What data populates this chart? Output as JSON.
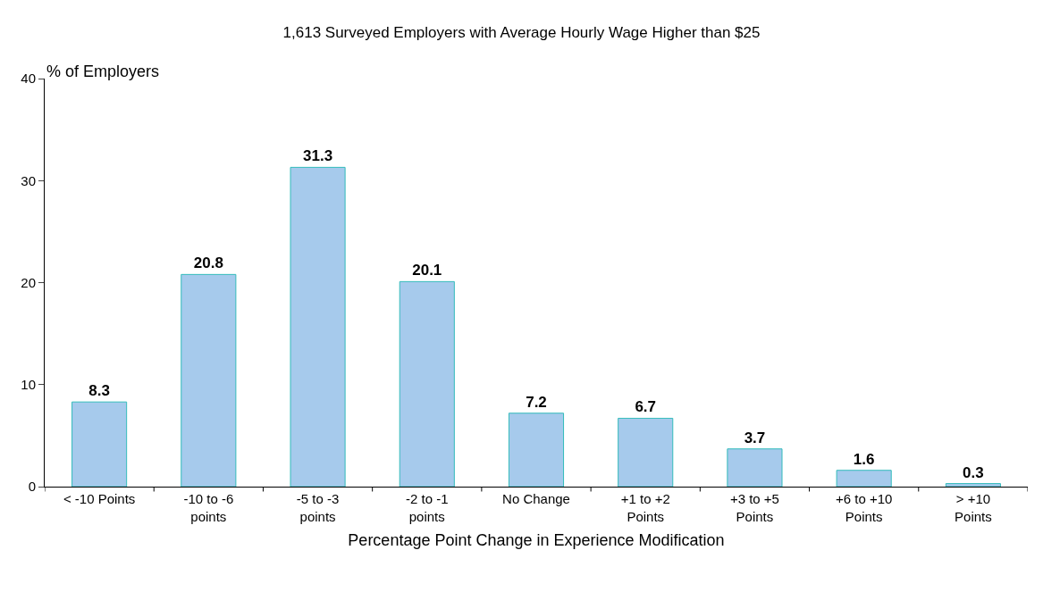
{
  "chart_data": {
    "type": "bar",
    "title": "1,613 Surveyed Employers with Average Hourly Wage Higher than $25",
    "xlabel": "Percentage Point Change in Experience Modification",
    "ylabel": "% of Employers",
    "categories": [
      "< -10 Points",
      "-10 to -6\npoints",
      "-5 to -3\npoints",
      "-2 to -1\npoints",
      "No Change",
      "+1 to +2\nPoints",
      "+3 to +5\nPoints",
      "+6 to +10\nPoints",
      "> +10\nPoints"
    ],
    "values": [
      8.3,
      20.8,
      31.3,
      20.1,
      7.2,
      6.7,
      3.7,
      1.6,
      0.3
    ],
    "color": "#a6caec",
    "ylim": [
      0,
      40
    ],
    "yticks": [
      0,
      10,
      20,
      30,
      40
    ],
    "data_labels": true
  }
}
